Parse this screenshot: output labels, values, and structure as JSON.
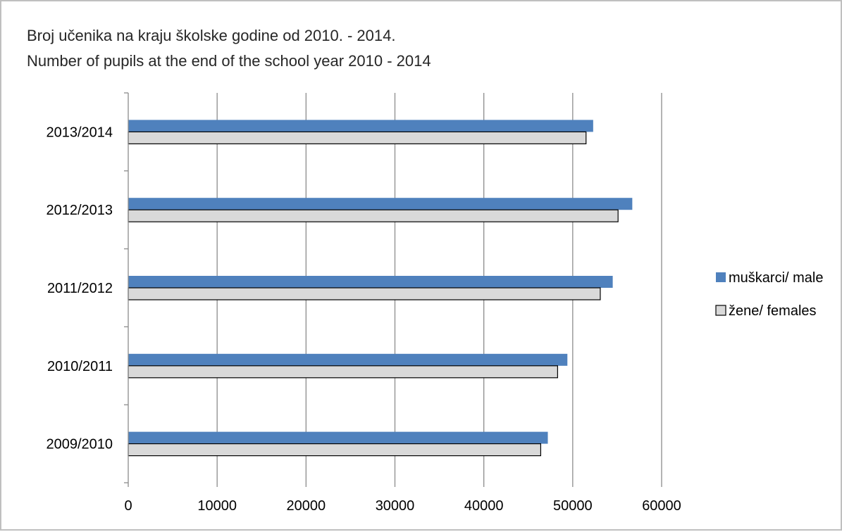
{
  "chart_data": {
    "type": "bar",
    "orientation": "horizontal",
    "title": "Broj učenika na kraju školske godine od 2010. - 2014.",
    "subtitle": "Number of pupils at the end of the school year 2010 - 2014",
    "xlabel": "",
    "ylabel": "",
    "categories": [
      "2009/2010",
      "2010/2011",
      "2011/2012",
      "2012/2013",
      "2013/2014"
    ],
    "series": [
      {
        "name": "muškarci/ male",
        "color": "#4f81bd",
        "values": [
          47200,
          49400,
          54500,
          56700,
          52300
        ]
      },
      {
        "name": "žene/ females",
        "color": "#d9d9d9",
        "values": [
          46400,
          48300,
          53100,
          55100,
          51500
        ]
      }
    ],
    "xlim": [
      0,
      60000
    ],
    "xticks": [
      0,
      10000,
      20000,
      30000,
      40000,
      50000,
      60000
    ],
    "grid": "vertical",
    "legend_position": "right"
  }
}
